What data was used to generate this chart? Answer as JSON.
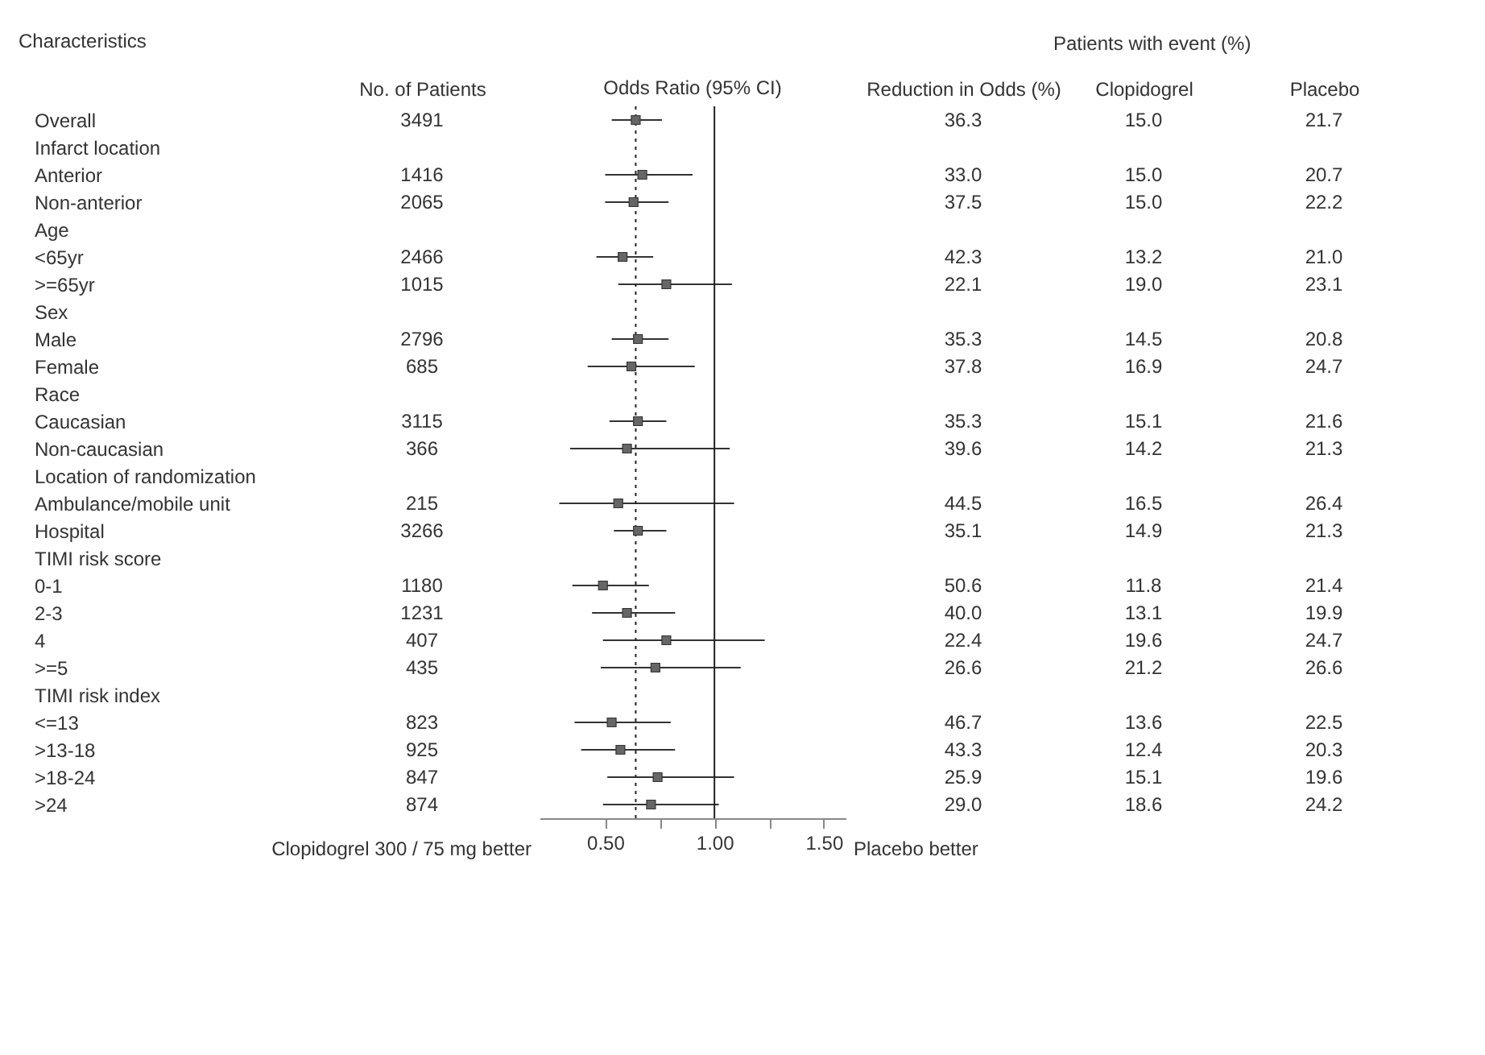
{
  "chart_data": [
    {
      "type": "other",
      "ylabel": "Characteristics",
      "title": "Patients with event (%)",
      "data_labels": true,
      "categories": [
        "Overall",
        "Infarct location",
        "Anterior",
        "Non-anterior",
        "Age",
        "<65yr",
        ">=65yr",
        "Sex",
        "Male",
        "Female",
        "Race",
        "Caucasian",
        "Non-caucasian",
        "Location of randomization",
        "Ambulance/mobile unit",
        "Hospital",
        "TIMI risk score",
        "0-1",
        "2-3",
        "4",
        ">=5",
        "TIMI risk index",
        "<=13",
        ">13-18",
        ">18-24",
        ">24"
      ],
      "series": [
        {
          "name": "No. of Patients",
          "values": [
            3491,
            null,
            1416,
            2065,
            null,
            2466,
            1015,
            null,
            2796,
            685,
            null,
            3115,
            366,
            null,
            215,
            3266,
            null,
            1180,
            1231,
            407,
            435,
            null,
            823,
            925,
            847,
            874
          ]
        },
        {
          "name": "Reduction in Odds (%)",
          "values": [
            36.3,
            null,
            33.0,
            37.5,
            null,
            42.3,
            22.1,
            null,
            35.3,
            37.8,
            null,
            35.3,
            39.6,
            null,
            44.5,
            35.1,
            null,
            50.6,
            40.0,
            22.4,
            26.6,
            null,
            46.7,
            43.3,
            25.9,
            29.0
          ],
          "value_labels": [
            "36.3",
            null,
            "33.0",
            "37.5",
            null,
            "42.3",
            "22.1",
            null,
            "35.3",
            "37.8",
            null,
            "35.3",
            "39.6",
            null,
            "44.5",
            "35.1",
            null,
            "50.6",
            "40.0",
            "22.4",
            "26.6",
            null,
            "46.7",
            "43.3",
            "25.9",
            "29.0"
          ]
        },
        {
          "name": "Clopidogrel",
          "values": [
            15.0,
            null,
            15.0,
            15.0,
            null,
            13.2,
            19.0,
            null,
            14.5,
            16.9,
            null,
            15.1,
            14.2,
            null,
            16.5,
            14.9,
            null,
            11.8,
            13.1,
            19.6,
            21.2,
            null,
            13.6,
            12.4,
            15.1,
            18.6
          ],
          "value_labels": [
            "15.0",
            null,
            "15.0",
            "15.0",
            null,
            "13.2",
            "19.0",
            null,
            "14.5",
            "16.9",
            null,
            "15.1",
            "14.2",
            null,
            "16.5",
            "14.9",
            null,
            "11.8",
            "13.1",
            "19.6",
            "21.2",
            null,
            "13.6",
            "12.4",
            "15.1",
            "18.6"
          ]
        },
        {
          "name": "Placebo",
          "values": [
            21.7,
            null,
            20.7,
            22.2,
            null,
            21.0,
            23.1,
            null,
            20.8,
            24.7,
            null,
            21.6,
            21.3,
            null,
            26.4,
            21.3,
            null,
            21.4,
            19.9,
            24.7,
            26.6,
            null,
            22.5,
            20.3,
            19.6,
            24.2
          ],
          "value_labels": [
            "21.7",
            null,
            "20.7",
            "22.2",
            null,
            "21.0",
            "23.1",
            null,
            "20.8",
            "24.7",
            null,
            "21.6",
            "21.3",
            null,
            "26.4",
            "21.3",
            null,
            "21.4",
            "19.9",
            "24.7",
            "26.6",
            null,
            "22.5",
            "20.3",
            "19.6",
            "24.2"
          ]
        }
      ]
    },
    {
      "type": "scatter",
      "title": "Odds Ratio (95% CI)",
      "orientation": "horizontal",
      "tick_labels": "x",
      "marker": "square",
      "color": "#666666",
      "categories": [
        null,
        null,
        null,
        null,
        null,
        null,
        null,
        null,
        null,
        null,
        null,
        null,
        null,
        null,
        null,
        null,
        null,
        null,
        null,
        null,
        null,
        null,
        null,
        null,
        null,
        null
      ],
      "values": [
        0.64,
        null,
        0.67,
        0.63,
        null,
        0.58,
        0.78,
        null,
        0.65,
        0.62,
        null,
        0.65,
        0.6,
        null,
        0.56,
        0.65,
        null,
        0.49,
        0.6,
        0.78,
        0.73,
        null,
        0.53,
        0.57,
        0.74,
        0.71
      ],
      "errors": [
        [
          0.53,
          0.76
        ],
        null,
        [
          0.5,
          0.9
        ],
        [
          0.5,
          0.79
        ],
        null,
        [
          0.46,
          0.72
        ],
        [
          0.56,
          1.08
        ],
        null,
        [
          0.53,
          0.79
        ],
        [
          0.42,
          0.91
        ],
        null,
        [
          0.52,
          0.78
        ],
        [
          0.34,
          1.07
        ],
        null,
        [
          0.29,
          1.09
        ],
        [
          0.54,
          0.78
        ],
        null,
        [
          0.35,
          0.7
        ],
        [
          0.44,
          0.82
        ],
        [
          0.49,
          1.23
        ],
        [
          0.48,
          1.12
        ],
        null,
        [
          0.36,
          0.8
        ],
        [
          0.39,
          0.82
        ],
        [
          0.51,
          1.09
        ],
        [
          0.49,
          1.02
        ]
      ],
      "xlim": [
        0.2,
        1.6
      ],
      "xticks": [
        {
          "value": 0.5,
          "label": "0.50"
        },
        {
          "value": 0.75,
          "label": null
        },
        {
          "value": 1.0,
          "label": "1.00"
        },
        {
          "value": 1.25,
          "label": null
        },
        {
          "value": 1.5,
          "label": "1.50"
        }
      ],
      "ref_lines": [
        {
          "axis": "x",
          "value": 1
        },
        {
          "axis": "x",
          "value": 0.64,
          "line_style": "dotted"
        }
      ],
      "annotations": [
        "Clopidogrel 300 / 75 mg better",
        "Placebo better"
      ]
    }
  ]
}
